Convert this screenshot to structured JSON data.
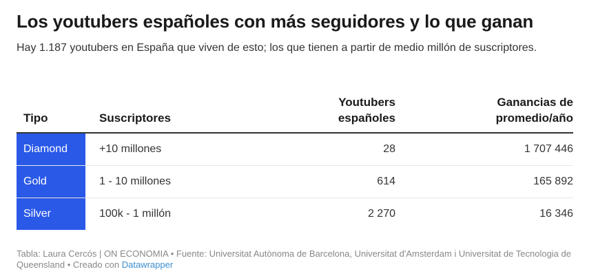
{
  "header": {
    "title": "Los youtubers españoles con más seguidores y lo que ganan",
    "subtitle": "Hay 1.187 youtubers en España que viven de esto; los que tienen a partir de medio millón de suscriptores."
  },
  "chart_data": {
    "type": "table",
    "columns": [
      "Tipo",
      "Suscriptores",
      "Youtubers españoles",
      "Ganancias de promedio/año"
    ],
    "rows": [
      {
        "tipo": "Diamond",
        "suscriptores": "+10 millones",
        "youtubers": "28",
        "ganancias": "1 707 446"
      },
      {
        "tipo": "Gold",
        "suscriptores": "1 - 10 millones",
        "youtubers": "614",
        "ganancias": "165 892"
      },
      {
        "tipo": "Silver",
        "suscriptores": "100k - 1 millón",
        "youtubers": "2 270",
        "ganancias": "16 346"
      }
    ]
  },
  "colors": {
    "tipo_highlight": "#2a59e8"
  },
  "footer": {
    "text": "Tabla: Laura Cercós | ON ECONOMIA • Fuente: Universitat Autònoma de Barcelona, Universitat d'Amsterdam i Universitat de Tecnologia de Queensland • Creado con ",
    "link": "Datawrapper"
  }
}
